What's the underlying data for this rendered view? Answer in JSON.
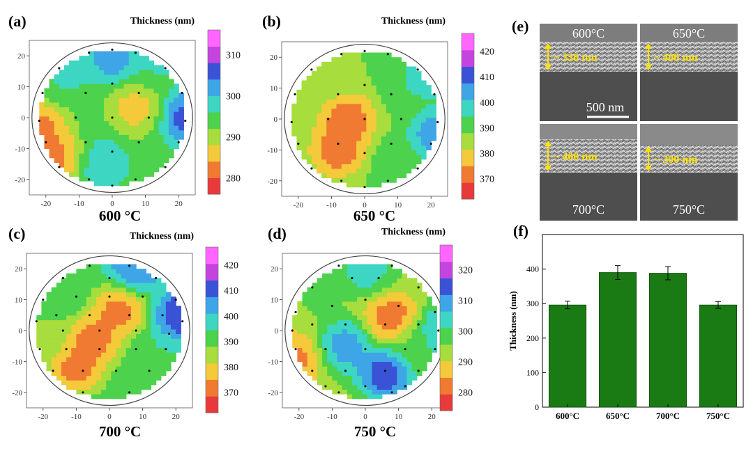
{
  "colors": {
    "scale": [
      "#e83a3a",
      "#f07a32",
      "#f4c93a",
      "#a7dd3c",
      "#4cd24c",
      "#3dd6c2",
      "#3ea5e6",
      "#3a52d6",
      "#c444e0",
      "#ff66ff"
    ],
    "bar_fill": "#1a7a14",
    "bar_stroke": "#0d4a0a"
  },
  "chart_data": [
    {
      "id": "a",
      "type": "heatmap",
      "panel_label": "(a)",
      "title": "Thickness (nm)",
      "caption": "600 °C",
      "x_ticks": [
        "-20",
        "-10",
        "0",
        "10",
        "20"
      ],
      "y_ticks": [
        "20",
        "10",
        "0",
        "-10",
        "-20"
      ],
      "axis_range": [
        -25,
        25
      ],
      "colorbar_ticks": [
        "310",
        "300",
        "290",
        "280"
      ],
      "colorbar_range": [
        276,
        316
      ],
      "hotspots": [
        {
          "x": 0,
          "y": 20,
          "v": 305
        },
        {
          "x": -17,
          "y": -13,
          "v": 279
        },
        {
          "x": 7,
          "y": 3,
          "v": 284
        },
        {
          "x": 23,
          "y": 0,
          "v": 310
        },
        {
          "x": -3,
          "y": -15,
          "v": 300
        },
        {
          "x": 15,
          "y": 17,
          "v": 297
        },
        {
          "x": -14,
          "y": 13,
          "v": 297
        },
        {
          "x": -22,
          "y": -3,
          "v": 279
        }
      ],
      "base_value": 294,
      "points": [
        [
          0,
          22
        ],
        [
          -7,
          21
        ],
        [
          7,
          21
        ],
        [
          -16,
          16
        ],
        [
          16,
          16
        ],
        [
          -21,
          8
        ],
        [
          21,
          8
        ],
        [
          -22,
          -1
        ],
        [
          22,
          -1
        ],
        [
          -20,
          -8
        ],
        [
          20,
          -8
        ],
        [
          -16,
          -16
        ],
        [
          16,
          -16
        ],
        [
          -7,
          -20
        ],
        [
          7,
          -20
        ],
        [
          0,
          -22
        ],
        [
          -8,
          8
        ],
        [
          0,
          11
        ],
        [
          8,
          8
        ],
        [
          -11,
          0
        ],
        [
          0,
          0
        ],
        [
          11,
          0
        ],
        [
          -8,
          -8
        ],
        [
          0,
          -11
        ],
        [
          8,
          -8
        ]
      ]
    },
    {
      "id": "b",
      "type": "heatmap",
      "panel_label": "(b)",
      "title": "Thickness (nm)",
      "caption": "650 °C",
      "x_ticks": [
        "-20",
        "-10",
        "0",
        "10",
        "20"
      ],
      "y_ticks": [
        "20",
        "10",
        "0",
        "-10",
        "-20"
      ],
      "axis_range": [
        -25,
        25
      ],
      "colorbar_ticks": [
        "420",
        "410",
        "400",
        "390",
        "380",
        "370"
      ],
      "colorbar_range": [
        362,
        427
      ],
      "hotspots": [
        {
          "x": -5,
          "y": 0,
          "v": 366
        },
        {
          "x": -8,
          "y": -10,
          "v": 366
        },
        {
          "x": 22,
          "y": 18,
          "v": 420
        },
        {
          "x": 22,
          "y": -5,
          "v": 412
        },
        {
          "x": 15,
          "y": 10,
          "v": 396
        },
        {
          "x": -16,
          "y": 13,
          "v": 386
        },
        {
          "x": 10,
          "y": -14,
          "v": 394
        }
      ],
      "base_value": 388,
      "points": [
        [
          0,
          22
        ],
        [
          -7,
          21
        ],
        [
          7,
          21
        ],
        [
          -16,
          16
        ],
        [
          16,
          16
        ],
        [
          -21,
          8
        ],
        [
          21,
          8
        ],
        [
          -22,
          -1
        ],
        [
          22,
          -1
        ],
        [
          -20,
          -8
        ],
        [
          20,
          -8
        ],
        [
          -16,
          -16
        ],
        [
          16,
          -16
        ],
        [
          -7,
          -20
        ],
        [
          7,
          -20
        ],
        [
          0,
          -22
        ],
        [
          -8,
          8
        ],
        [
          0,
          11
        ],
        [
          8,
          8
        ],
        [
          -11,
          0
        ],
        [
          0,
          0
        ],
        [
          11,
          0
        ],
        [
          -8,
          -8
        ],
        [
          0,
          -11
        ],
        [
          8,
          -8
        ]
      ]
    },
    {
      "id": "c",
      "type": "heatmap",
      "panel_label": "(c)",
      "title": "Thickness (nm)",
      "caption": "700 °C",
      "x_ticks": [
        "-20",
        "-10",
        "0",
        "10",
        "20"
      ],
      "y_ticks": [
        "20",
        "10",
        "0",
        "-10",
        "-20"
      ],
      "axis_range": [
        -25,
        25
      ],
      "colorbar_ticks": [
        "420",
        "410",
        "400",
        "390",
        "380",
        "370"
      ],
      "colorbar_range": [
        362,
        427
      ],
      "hotspots": [
        {
          "x": -5,
          "y": -3,
          "v": 366
        },
        {
          "x": 3,
          "y": 7,
          "v": 366
        },
        {
          "x": -10,
          "y": -12,
          "v": 366
        },
        {
          "x": 22,
          "y": 5,
          "v": 420
        },
        {
          "x": 8,
          "y": 20,
          "v": 412
        },
        {
          "x": -16,
          "y": 15,
          "v": 395
        },
        {
          "x": 16,
          "y": -10,
          "v": 395
        },
        {
          "x": -20,
          "y": -2,
          "v": 384
        }
      ],
      "base_value": 392,
      "points": [
        [
          -6,
          21
        ],
        [
          6,
          21
        ],
        [
          -14,
          17
        ],
        [
          0,
          17
        ],
        [
          14,
          17
        ],
        [
          -20,
          10
        ],
        [
          -10,
          11
        ],
        [
          0,
          11
        ],
        [
          10,
          11
        ],
        [
          20,
          10
        ],
        [
          -22,
          3
        ],
        [
          -16,
          5
        ],
        [
          -6,
          5
        ],
        [
          6,
          5
        ],
        [
          16,
          5
        ],
        [
          22,
          3
        ],
        [
          -21,
          -6
        ],
        [
          -13,
          -6
        ],
        [
          -3,
          -6
        ],
        [
          8,
          -6
        ],
        [
          17,
          -6
        ],
        [
          -17,
          -13
        ],
        [
          -8,
          -13
        ],
        [
          2,
          -13
        ],
        [
          12,
          -13
        ],
        [
          -8,
          -20
        ],
        [
          6,
          -20
        ],
        [
          -14,
          0
        ],
        [
          -3,
          0
        ],
        [
          8,
          0
        ],
        [
          18,
          -1
        ]
      ]
    },
    {
      "id": "d",
      "type": "heatmap",
      "panel_label": "(d)",
      "title": "Thickness (nm)",
      "caption": "750 °C",
      "x_ticks": [
        "-20",
        "-10",
        "0",
        "10",
        "20"
      ],
      "y_ticks": [
        "20",
        "10",
        "0",
        "-10",
        "-20"
      ],
      "axis_range": [
        -25,
        25
      ],
      "colorbar_ticks": [
        "320",
        "310",
        "300",
        "290",
        "280"
      ],
      "colorbar_range": [
        274,
        328
      ],
      "hotspots": [
        {
          "x": 8,
          "y": 4,
          "v": 278
        },
        {
          "x": -6,
          "y": -5,
          "v": 314
        },
        {
          "x": 6,
          "y": -14,
          "v": 322
        },
        {
          "x": -21,
          "y": -9,
          "v": 280
        },
        {
          "x": 23,
          "y": 0,
          "v": 312
        },
        {
          "x": 0,
          "y": 20,
          "v": 307
        },
        {
          "x": -14,
          "y": 12,
          "v": 297
        },
        {
          "x": 15,
          "y": -5,
          "v": 298
        }
      ],
      "base_value": 294,
      "points": [
        [
          -8,
          21
        ],
        [
          8,
          21
        ],
        [
          -16,
          14
        ],
        [
          -4,
          17
        ],
        [
          4,
          17
        ],
        [
          16,
          14
        ],
        [
          -21,
          6
        ],
        [
          -10,
          8
        ],
        [
          0,
          10
        ],
        [
          10,
          8
        ],
        [
          21,
          6
        ],
        [
          -16,
          2
        ],
        [
          -6,
          2
        ],
        [
          6,
          2
        ],
        [
          16,
          2
        ],
        [
          -21,
          -6
        ],
        [
          -12,
          -6
        ],
        [
          0,
          -6
        ],
        [
          12,
          -6
        ],
        [
          21,
          -6
        ],
        [
          -16,
          -13
        ],
        [
          -6,
          -13
        ],
        [
          6,
          -13
        ],
        [
          16,
          -13
        ],
        [
          -8,
          -20
        ],
        [
          8,
          -20
        ],
        [
          -22,
          0
        ],
        [
          22,
          0
        ],
        [
          0,
          -18
        ],
        [
          -12,
          -18
        ],
        [
          12,
          -18
        ]
      ]
    },
    {
      "id": "f",
      "type": "bar",
      "panel_label": "(f)",
      "categories": [
        "600°C",
        "650°C",
        "700°C",
        "750°C"
      ],
      "values": [
        296,
        390,
        388,
        296
      ],
      "errors": [
        11,
        20,
        19,
        10
      ],
      "ylabel": "Thickness (nm)",
      "ylim": [
        0,
        500
      ],
      "y_ticks": [
        "0",
        "100",
        "200",
        "300",
        "400"
      ]
    }
  ],
  "sem": {
    "panel_label": "(e)",
    "scale_bar": "500 nm",
    "cells": [
      {
        "temp": "600°C",
        "thickness": "~ 330 nm"
      },
      {
        "temp": "650°C",
        "thickness": "~ 400 nm"
      },
      {
        "temp": "700°C",
        "thickness": "~ 400 nm"
      },
      {
        "temp": "750°C",
        "thickness": "~ 300 nm"
      }
    ]
  }
}
